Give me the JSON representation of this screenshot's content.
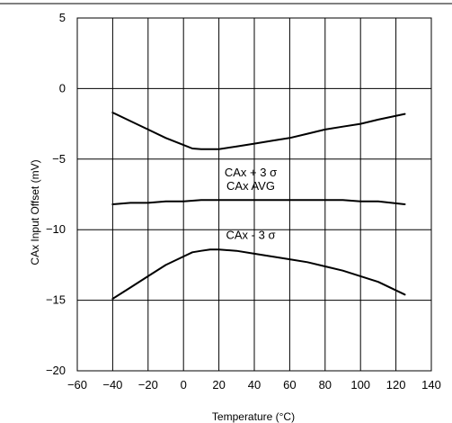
{
  "chart_data": {
    "type": "line",
    "title": "",
    "xlabel": "Temperature (°C)",
    "ylabel": "CAx Input Offset (mV)",
    "xlim": [
      -60,
      140
    ],
    "ylim": [
      -20,
      5
    ],
    "xticks": [
      -60,
      -40,
      -20,
      0,
      20,
      40,
      60,
      80,
      100,
      120,
      140
    ],
    "yticks": [
      5,
      0,
      -5,
      -10,
      -15,
      -20
    ],
    "xtick_labels": [
      "−60",
      "−40",
      "−20",
      "0",
      "20",
      "40",
      "60",
      "80",
      "100",
      "120",
      "140"
    ],
    "ytick_labels": [
      "5",
      "0",
      "−5",
      "−10",
      "−15",
      "−20"
    ],
    "grid": true,
    "legend": "none",
    "colors": {
      "line": "#000000",
      "grid": "#000000",
      "background": "#ffffff"
    },
    "series": [
      {
        "name": "CAx + 3 σ",
        "x": [
          -40,
          -30,
          -20,
          -10,
          0,
          5,
          10,
          20,
          30,
          40,
          50,
          60,
          70,
          80,
          90,
          100,
          110,
          125
        ],
        "values": [
          -1.7,
          -2.3,
          -2.9,
          -3.5,
          -4.0,
          -4.25,
          -4.3,
          -4.3,
          -4.1,
          -3.9,
          -3.7,
          -3.5,
          -3.2,
          -2.9,
          -2.7,
          -2.5,
          -2.2,
          -1.8
        ]
      },
      {
        "name": "CAx AVG",
        "x": [
          -40,
          -30,
          -20,
          -10,
          0,
          10,
          20,
          30,
          40,
          50,
          60,
          70,
          80,
          90,
          100,
          110,
          125
        ],
        "values": [
          -8.2,
          -8.1,
          -8.1,
          -8.0,
          -8.0,
          -7.9,
          -7.9,
          -7.9,
          -7.9,
          -7.9,
          -7.9,
          -7.9,
          -7.9,
          -7.9,
          -8.0,
          -8.0,
          -8.2
        ]
      },
      {
        "name": "CAx - 3 σ",
        "x": [
          -40,
          -30,
          -20,
          -10,
          0,
          5,
          10,
          15,
          20,
          30,
          40,
          50,
          60,
          70,
          80,
          90,
          100,
          110,
          125
        ],
        "values": [
          -14.9,
          -14.1,
          -13.3,
          -12.5,
          -11.9,
          -11.6,
          -11.5,
          -11.4,
          -11.4,
          -11.5,
          -11.7,
          -11.9,
          -12.1,
          -12.3,
          -12.6,
          -12.9,
          -13.3,
          -13.7,
          -14.6
        ]
      }
    ]
  }
}
